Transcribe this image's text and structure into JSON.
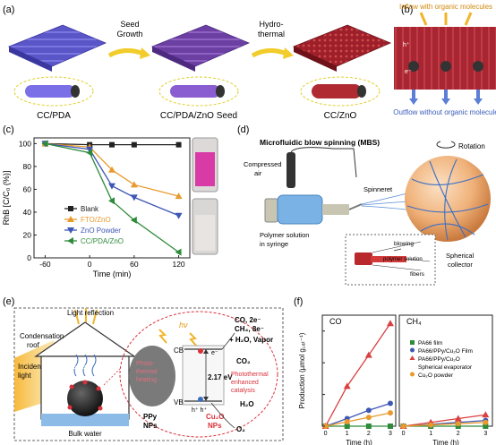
{
  "panels": {
    "a": {
      "label": "(a)",
      "stages": [
        "CC/PDA",
        "CC/PDA/ZnO Seed",
        "CC/ZnO"
      ],
      "arrow1": [
        "Seed",
        "Growth"
      ],
      "arrow2": [
        "Hydro-",
        "thermal"
      ]
    },
    "b": {
      "label": "(b)",
      "inflow": "Inflow with organic molecules",
      "outflow": "Outflow without organic molecule",
      "hplus": "h⁺",
      "eminus": "e⁻"
    },
    "c": {
      "label": "(c)"
    },
    "d": {
      "label": "(d)",
      "title": "Microfluidic blow spinning (MBS)",
      "rotation": "Rotation",
      "compressed_air": [
        "Compressed",
        "air"
      ],
      "spinneret": "Spinneret",
      "polymer": [
        "Polymer solution",
        "in syringe"
      ],
      "collector": [
        "Spherical",
        "collector"
      ],
      "blowing": "blowing",
      "polymer_solution": "polymer solution",
      "fibers": "fibers"
    },
    "e": {
      "label": "(e)",
      "light_reflection": "Light reflection",
      "condensation": [
        "Condensation",
        "roof"
      ],
      "incident": [
        "Incident",
        "light"
      ],
      "steam": "Steam",
      "bulk_water": "Bulk water",
      "hv": "hν",
      "cb": "CB",
      "vb": "VB",
      "e_minus": "e⁻",
      "h_plus": "h⁺ h⁺",
      "energy": "2.17 eV",
      "photothermal": [
        "Photo-",
        "thermal",
        "heating"
      ],
      "ppy": [
        "PPy",
        "NPs"
      ],
      "cu2o": [
        "Cu₂O",
        "NPs"
      ],
      "products": [
        "CO, 2e⁻",
        "CH₄, 8e⁻"
      ],
      "water_vapor": "+ H₂O, Vapor",
      "co2": "CO₂",
      "h2o": "H₂O",
      "o2": "O₂",
      "enhanced": [
        "Photothermal",
        "enhanced",
        "catalysis"
      ]
    },
    "f": {
      "label": "(f)",
      "left_title": "CO",
      "right_title": "CH₄",
      "legend": [
        "PA66 film",
        "PA66/PPy/Cu₂O Film",
        "PA66/PPy/Cu₂O",
        "Spherical evaporator",
        "Cu₂O powder"
      ]
    }
  },
  "chart_data": [
    {
      "type": "line",
      "panel": "c",
      "xlabel": "Time (min)",
      "ylabel": "RhB  [C/C₀ (%)]",
      "xlim": [
        -75,
        135
      ],
      "ylim": [
        0,
        105
      ],
      "xticks": [
        -60,
        0,
        60,
        120
      ],
      "yticks": [
        0,
        20,
        40,
        60,
        80,
        100
      ],
      "series": [
        {
          "name": "Blank",
          "color": "#222222",
          "marker": "square",
          "x": [
            -60,
            0,
            30,
            60,
            120
          ],
          "y": [
            100,
            99,
            99,
            99,
            99
          ]
        },
        {
          "name": "FTO/ZnO",
          "color": "#e89a2c",
          "marker": "triangle",
          "x": [
            -60,
            0,
            30,
            60,
            120
          ],
          "y": [
            100,
            97,
            77,
            64,
            54
          ]
        },
        {
          "name": "ZnO Powder",
          "color": "#3e57b4",
          "marker": "triangle-down",
          "x": [
            -60,
            0,
            30,
            60,
            120
          ],
          "y": [
            100,
            95,
            63,
            53,
            37
          ]
        },
        {
          "name": "CC/PDA/ZnO",
          "color": "#2e8b3a",
          "marker": "triangle-left",
          "x": [
            -60,
            0,
            30,
            60,
            120
          ],
          "y": [
            100,
            92,
            50,
            33,
            5
          ]
        }
      ]
    },
    {
      "type": "line",
      "panel": "f-left",
      "title": "CO",
      "xlabel": "Time (h)",
      "ylabel": "Production (µmol g꜀ₐₜ⁻¹)",
      "xlim": [
        -0.15,
        3.25
      ],
      "ylim": [
        0,
        175
      ],
      "xticks": [
        0,
        1,
        2,
        3
      ],
      "series": [
        {
          "name": "PA66 film",
          "color": "#2e8b3a",
          "marker": "square",
          "x": [
            0,
            1,
            2,
            3
          ],
          "y": [
            0,
            0,
            0,
            0
          ]
        },
        {
          "name": "PA66/PPy/Cu₂O Film",
          "color": "#3e57b4",
          "marker": "circle",
          "x": [
            0,
            1,
            2,
            3
          ],
          "y": [
            0,
            12,
            25,
            36
          ]
        },
        {
          "name": "PA66/PPy/Cu₂O Spherical evaporator",
          "color": "#d94040",
          "marker": "triangle",
          "x": [
            0,
            1,
            2,
            3
          ],
          "y": [
            0,
            63,
            112,
            162
          ]
        },
        {
          "name": "Cu₂O powder",
          "color": "#e89a2c",
          "marker": "circle",
          "x": [
            0,
            1,
            2,
            3
          ],
          "y": [
            0,
            7,
            14,
            21
          ]
        }
      ]
    },
    {
      "type": "line",
      "panel": "f-right",
      "title": "CH₄",
      "xlabel": "Time (h)",
      "xlim": [
        -0.15,
        3.25
      ],
      "ylim": [
        0,
        175
      ],
      "xticks": [
        0,
        1,
        2,
        3
      ],
      "series": [
        {
          "name": "PA66 film",
          "color": "#2e8b3a",
          "marker": "square",
          "x": [
            0,
            1,
            2,
            3
          ],
          "y": [
            0,
            0,
            0,
            0
          ]
        },
        {
          "name": "PA66/PPy/Cu₂O Film",
          "color": "#3e57b4",
          "marker": "circle",
          "x": [
            0,
            1,
            2,
            3
          ],
          "y": [
            0,
            3,
            6,
            9
          ]
        },
        {
          "name": "PA66/PPy/Cu₂O Spherical evaporator",
          "color": "#d94040",
          "marker": "triangle",
          "x": [
            0,
            1,
            2,
            3
          ],
          "y": [
            0,
            6,
            12,
            18
          ]
        },
        {
          "name": "Cu₂O powder",
          "color": "#e89a2c",
          "marker": "circle",
          "x": [
            0,
            1,
            2,
            3
          ],
          "y": [
            0,
            2,
            4,
            6
          ]
        }
      ]
    }
  ]
}
